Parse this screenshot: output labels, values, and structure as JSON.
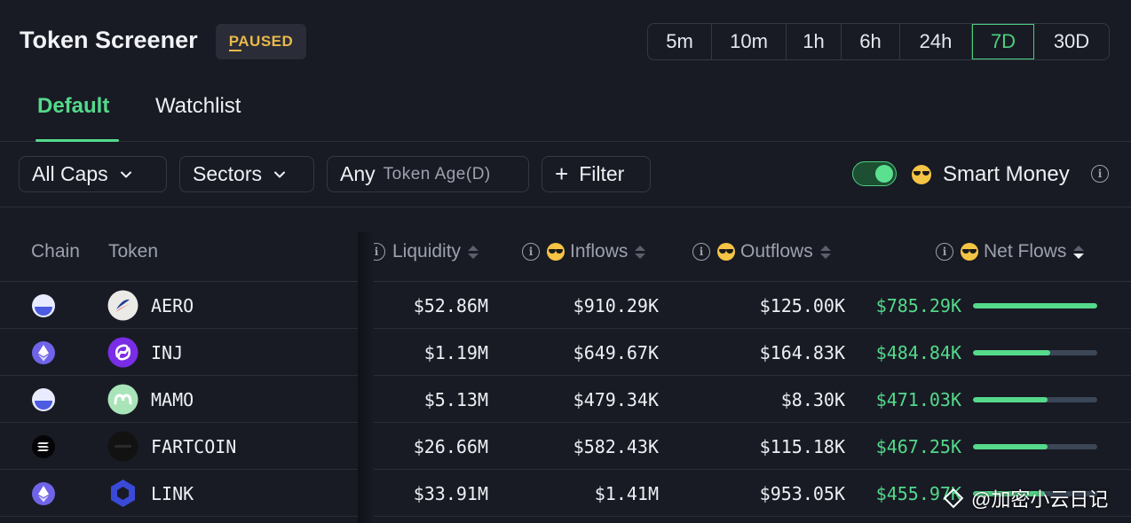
{
  "header": {
    "title": "Token Screener",
    "status_badge": "PAUSED",
    "timeframes": [
      "5m",
      "10m",
      "1h",
      "6h",
      "24h",
      "7D",
      "30D"
    ],
    "active_timeframe": "7D"
  },
  "tabs": [
    {
      "label": "Default",
      "active": true
    },
    {
      "label": "Watchlist",
      "active": false
    }
  ],
  "filters": {
    "caps": "All Caps",
    "sectors": "Sectors",
    "age_value": "Any",
    "age_label": "Token Age(D)",
    "add_filter": "Filter",
    "smart_money_label": "Smart Money",
    "smart_money_enabled": true
  },
  "columns": {
    "chain": "Chain",
    "token": "Token",
    "liquidity": "Liquidity",
    "inflows": "Inflows",
    "outflows": "Outflows",
    "net_flows": "Net Flows"
  },
  "rows": [
    {
      "chain": "base-icon",
      "token": "AERO",
      "liquidity": "$52.86M",
      "inflows": "$910.29K",
      "outflows": "$125.00K",
      "net_flows": "$785.29K",
      "net_fraction": 1.0
    },
    {
      "chain": "ethereum-icon",
      "token": "INJ",
      "liquidity": "$1.19M",
      "inflows": "$649.67K",
      "outflows": "$164.83K",
      "net_flows": "$484.84K",
      "net_fraction": 0.62
    },
    {
      "chain": "base-icon",
      "token": "MAMO",
      "liquidity": "$5.13M",
      "inflows": "$479.34K",
      "outflows": "$8.30K",
      "net_flows": "$471.03K",
      "net_fraction": 0.6
    },
    {
      "chain": "solana-icon",
      "token": "FARTCOIN",
      "liquidity": "$26.66M",
      "inflows": "$582.43K",
      "outflows": "$115.18K",
      "net_flows": "$467.25K",
      "net_fraction": 0.6
    },
    {
      "chain": "ethereum-icon",
      "token": "LINK",
      "liquidity": "$33.91M",
      "inflows": "$1.41M",
      "outflows": "$953.05K",
      "net_flows": "$455.97K",
      "net_fraction": 0.58
    }
  ],
  "colors": {
    "background": "#181b24",
    "accent_green": "#55d98b",
    "paused_yellow": "#e9b949"
  },
  "watermark": "@加密小云日记"
}
